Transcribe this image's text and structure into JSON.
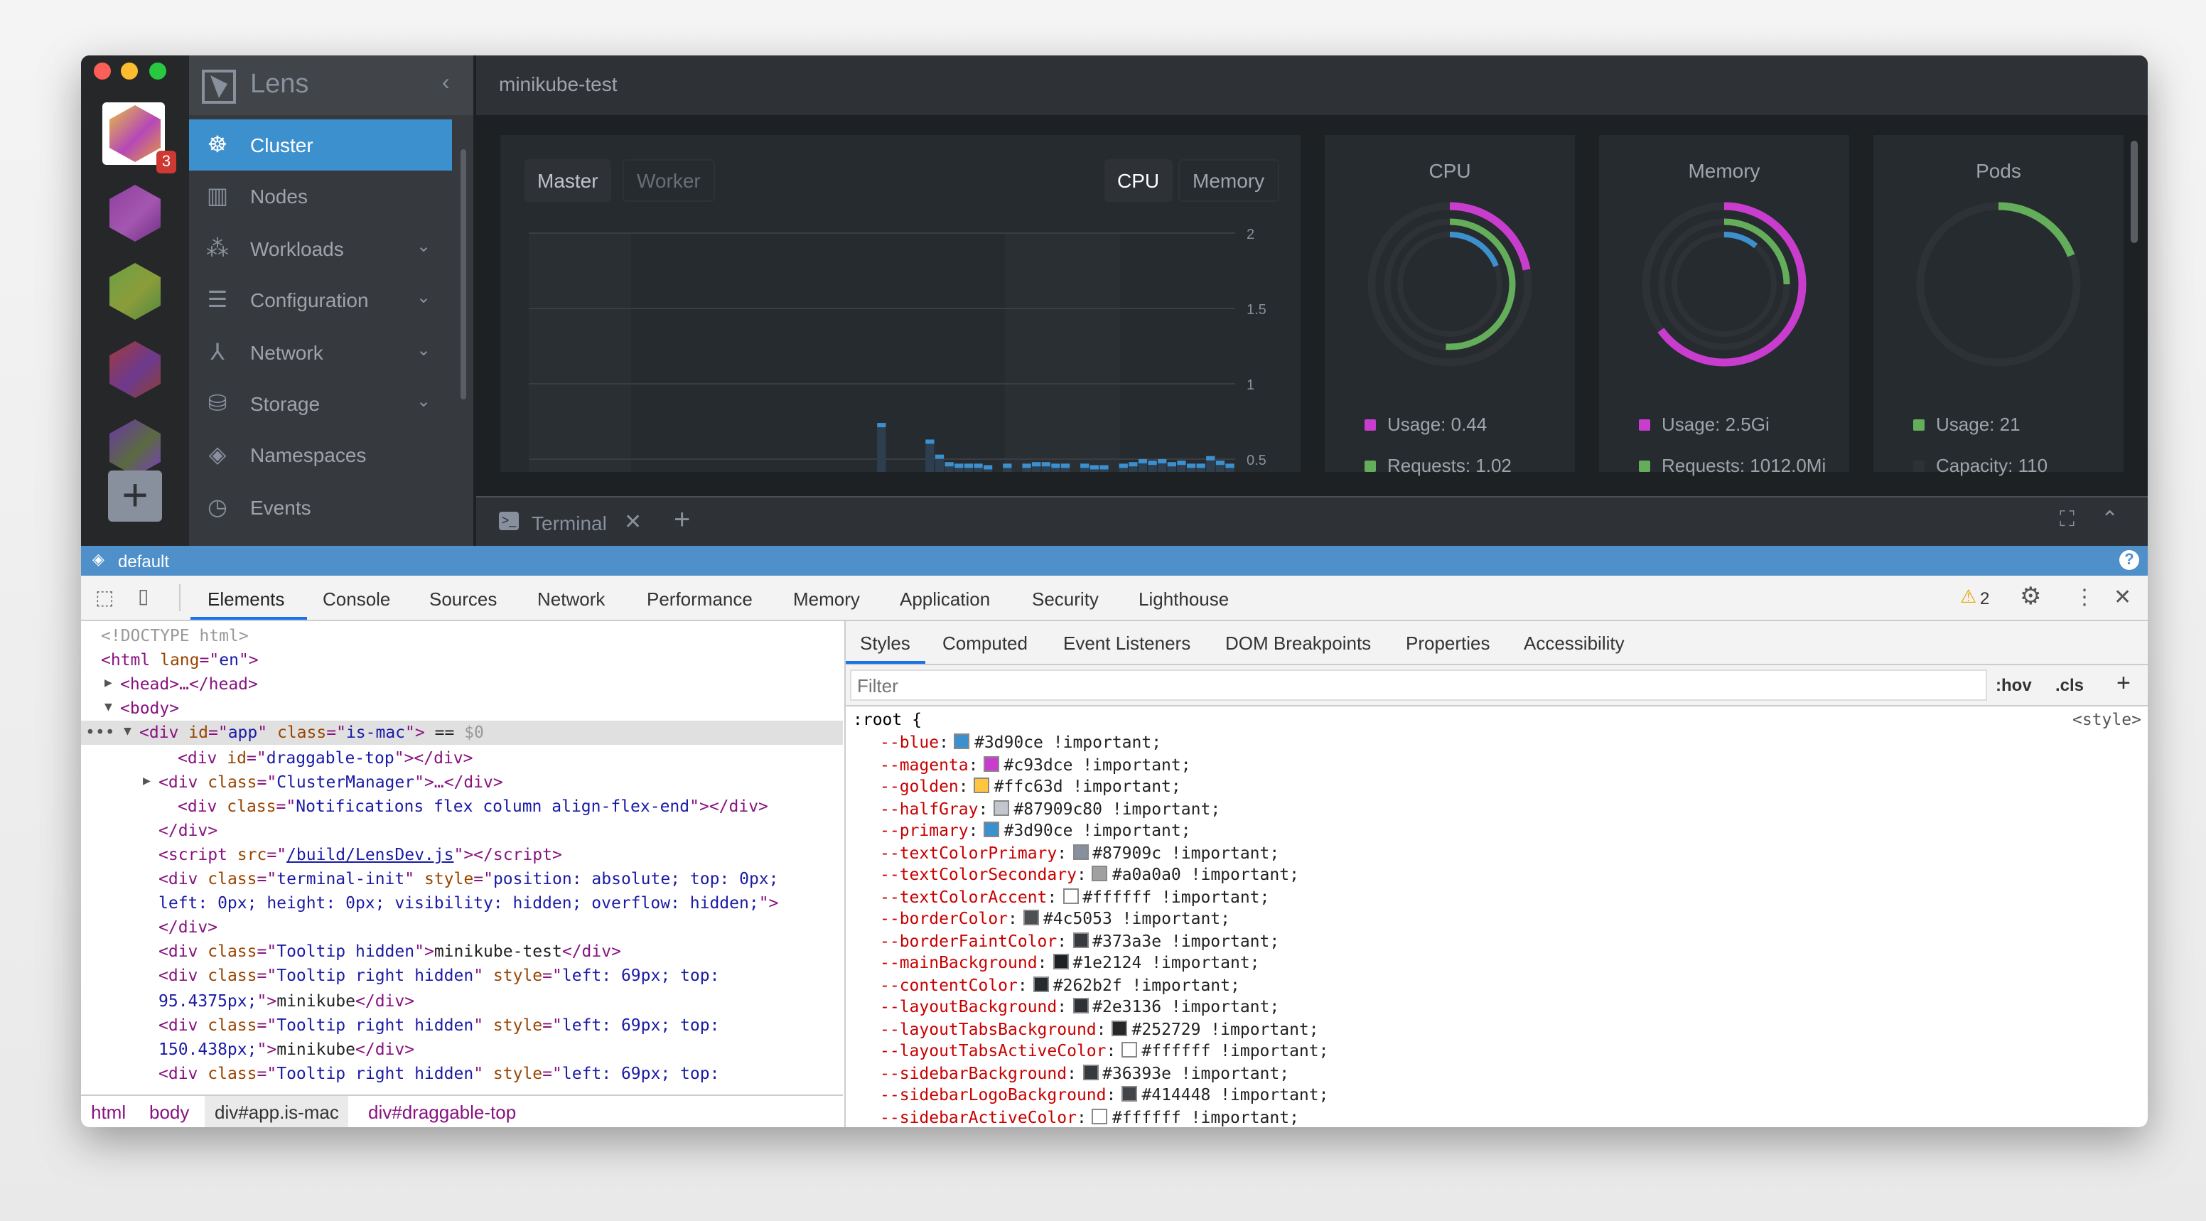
{
  "app": {
    "name": "Lens",
    "cluster_title": "minikube-test",
    "notification_count": "3",
    "add_cluster_label": "+"
  },
  "colors": {
    "blue": "#3d90ce",
    "magenta": "#c93dce",
    "green": "#64ad5a",
    "golden": "#ffc63d",
    "sidebar": "#36393e",
    "main_background": "#1e2124"
  },
  "clusters": [
    {
      "colors": [
        "#e8c040",
        "#b548b8",
        "#e39c3a"
      ],
      "active": true
    },
    {
      "colors": [
        "#8d3f9e",
        "#a457b0",
        "#6e2f80"
      ]
    },
    {
      "colors": [
        "#6aa045",
        "#8c9c3a",
        "#4f8a40"
      ]
    },
    {
      "colors": [
        "#a13a3a",
        "#6c3a8f",
        "#8f4030"
      ]
    },
    {
      "colors": [
        "#6a37a8",
        "#5a6a40",
        "#7a3ec0"
      ]
    }
  ],
  "sidebar": {
    "items": [
      {
        "label": "Cluster",
        "icon": "helm-wheel-icon",
        "active": true
      },
      {
        "label": "Nodes",
        "icon": "server-icon"
      },
      {
        "label": "Workloads",
        "icon": "cubes-icon",
        "expandable": true
      },
      {
        "label": "Configuration",
        "icon": "list-icon",
        "expandable": true
      },
      {
        "label": "Network",
        "icon": "network-icon",
        "expandable": true
      },
      {
        "label": "Storage",
        "icon": "database-icon",
        "expandable": true
      },
      {
        "label": "Namespaces",
        "icon": "layers-icon"
      },
      {
        "label": "Events",
        "icon": "clock-icon"
      }
    ]
  },
  "metrics": {
    "node_tabs": [
      "Master",
      "Worker"
    ],
    "metric_tabs": [
      "CPU",
      "Memory"
    ],
    "active_node_tab": "Master",
    "active_metric_tab": "CPU"
  },
  "chart_data": {
    "type": "bar",
    "ylim": [
      0.42,
      2
    ],
    "yticks": [
      "2",
      "1.5",
      "1",
      "0.5"
    ],
    "ytick_values": [
      2,
      1.5,
      1,
      0.5
    ],
    "grid": true,
    "values": [
      null,
      null,
      null,
      null,
      null,
      null,
      null,
      null,
      null,
      null,
      null,
      null,
      null,
      null,
      null,
      null,
      null,
      null,
      null,
      null,
      null,
      null,
      null,
      null,
      null,
      null,
      null,
      null,
      null,
      null,
      null,
      null,
      null,
      null,
      null,
      null,
      0.74,
      null,
      null,
      null,
      null,
      0.63,
      0.53,
      0.48,
      0.47,
      0.47,
      0.47,
      0.46,
      null,
      0.47,
      null,
      0.47,
      0.48,
      0.48,
      0.47,
      0.47,
      null,
      0.47,
      0.46,
      0.46,
      null,
      0.47,
      0.48,
      0.5,
      0.49,
      0.5,
      0.48,
      0.49,
      0.47,
      0.47,
      0.52,
      0.49,
      0.47
    ]
  },
  "cards": [
    {
      "title": "CPU",
      "rings": [
        {
          "color": "#c93dce",
          "fraction": 0.22
        },
        {
          "color": "#64ad5a",
          "fraction": 0.51
        },
        {
          "color": "#3d90ce",
          "fraction": 0.19
        }
      ],
      "legend": [
        {
          "label": "Usage: 0.44",
          "color": "#c93dce"
        },
        {
          "label": "Requests: 1.02",
          "color": "#64ad5a"
        }
      ]
    },
    {
      "title": "Memory",
      "rings": [
        {
          "color": "#c93dce",
          "fraction": 0.65
        },
        {
          "color": "#64ad5a",
          "fraction": 0.25
        },
        {
          "color": "#3d90ce",
          "fraction": 0.11
        }
      ],
      "legend": [
        {
          "label": "Usage: 2.5Gi",
          "color": "#c93dce"
        },
        {
          "label": "Requests: 1012.0Mi",
          "color": "#64ad5a"
        }
      ]
    },
    {
      "title": "Pods",
      "rings": [
        {
          "color": "#64ad5a",
          "fraction": 0.19
        }
      ],
      "legend": [
        {
          "label": "Usage: 21",
          "color": "#64ad5a"
        },
        {
          "label": "Capacity: 110",
          "color": "#2e3136"
        }
      ]
    }
  ],
  "terminal": {
    "tab_label": "Terminal"
  },
  "statusbar": {
    "namespace": "default"
  },
  "devtools": {
    "tabs": [
      "Elements",
      "Console",
      "Sources",
      "Network",
      "Performance",
      "Memory",
      "Application",
      "Security",
      "Lighthouse"
    ],
    "active_tab": "Elements",
    "warning_count": "2",
    "breadcrumbs": [
      "html",
      "body",
      "div#app.is-mac",
      "div#draggable-top"
    ],
    "styles_tabs": [
      "Styles",
      "Computed",
      "Event Listeners",
      "DOM Breakpoints",
      "Properties",
      "Accessibility"
    ],
    "filter_placeholder": "Filter",
    "hov": ":hov",
    "cls": ".cls",
    "rule_selector": ":root {",
    "rule_source": "<style>",
    "properties": [
      {
        "name": "--blue",
        "value": "#3d90ce !important;",
        "swatch": "#3d90ce"
      },
      {
        "name": "--magenta",
        "value": "#c93dce !important;",
        "swatch": "#c93dce"
      },
      {
        "name": "--golden",
        "value": "#ffc63d !important;",
        "swatch": "#ffc63d"
      },
      {
        "name": "--halfGray",
        "value": "#87909c80 !important;",
        "swatch": "#87909c80"
      },
      {
        "name": "--primary",
        "value": "#3d90ce !important;",
        "swatch": "#3d90ce"
      },
      {
        "name": "--textColorPrimary",
        "value": "#87909c !important;",
        "swatch": "#87909c"
      },
      {
        "name": "--textColorSecondary",
        "value": "#a0a0a0 !important;",
        "swatch": "#a0a0a0"
      },
      {
        "name": "--textColorAccent",
        "value": "#ffffff !important;",
        "swatch": "#ffffff"
      },
      {
        "name": "--borderColor",
        "value": "#4c5053 !important;",
        "swatch": "#4c5053"
      },
      {
        "name": "--borderFaintColor",
        "value": "#373a3e !important;",
        "swatch": "#373a3e"
      },
      {
        "name": "--mainBackground",
        "value": "#1e2124 !important;",
        "swatch": "#1e2124"
      },
      {
        "name": "--contentColor",
        "value": "#262b2f !important;",
        "swatch": "#262b2f"
      },
      {
        "name": "--layoutBackground",
        "value": "#2e3136 !important;",
        "swatch": "#2e3136"
      },
      {
        "name": "--layoutTabsBackground",
        "value": "#252729 !important;",
        "swatch": "#252729"
      },
      {
        "name": "--layoutTabsActiveColor",
        "value": "#ffffff !important;",
        "swatch": "#ffffff"
      },
      {
        "name": "--sidebarBackground",
        "value": "#36393e !important;",
        "swatch": "#36393e"
      },
      {
        "name": "--sidebarLogoBackground",
        "value": "#414448 !important;",
        "swatch": "#414448"
      },
      {
        "name": "--sidebarActiveColor",
        "value": "#ffffff !important;",
        "swatch": "#ffffff"
      }
    ],
    "dom_lines": [
      {
        "indent": 0,
        "html": [
          [
            "cm",
            "<!DOCTYPE html>"
          ]
        ]
      },
      {
        "indent": 0,
        "html": [
          [
            "tg",
            "<html "
          ],
          [
            "an",
            "lang"
          ],
          [
            "tg",
            "=\""
          ],
          [
            "av",
            "en"
          ],
          [
            "tg",
            "\">"
          ]
        ]
      },
      {
        "indent": 1,
        "arrow": "▶",
        "html": [
          [
            "tg",
            "<head>…</head>"
          ]
        ]
      },
      {
        "indent": 1,
        "arrow": "▼",
        "html": [
          [
            "tg",
            "<body>"
          ]
        ]
      },
      {
        "indent": 2,
        "arrow": "▼",
        "selected": true,
        "html": [
          [
            "tg",
            "<div "
          ],
          [
            "an",
            "id"
          ],
          [
            "tg",
            "=\""
          ],
          [
            "av",
            "app"
          ],
          [
            "tg",
            "\" "
          ],
          [
            "an",
            "class"
          ],
          [
            "tg",
            "=\""
          ],
          [
            "av",
            "is-mac"
          ],
          [
            "tg",
            "\">"
          ],
          [
            "",
            " == "
          ],
          [
            "cm",
            "$0"
          ]
        ]
      },
      {
        "indent": 4,
        "html": [
          [
            "tg",
            "<div "
          ],
          [
            "an",
            "id"
          ],
          [
            "tg",
            "=\""
          ],
          [
            "av",
            "draggable-top"
          ],
          [
            "tg",
            "\"></div>"
          ]
        ]
      },
      {
        "indent": 3,
        "arrow": "▶",
        "html": [
          [
            "tg",
            "<div "
          ],
          [
            "an",
            "class"
          ],
          [
            "tg",
            "=\""
          ],
          [
            "av",
            "ClusterManager"
          ],
          [
            "tg",
            "\">…</div>"
          ]
        ]
      },
      {
        "indent": 4,
        "html": [
          [
            "tg",
            "<div "
          ],
          [
            "an",
            "class"
          ],
          [
            "tg",
            "=\""
          ],
          [
            "av",
            "Notifications flex column align-flex-end"
          ],
          [
            "tg",
            "\"></div>"
          ]
        ]
      },
      {
        "indent": 3,
        "html": [
          [
            "tg",
            "</div>"
          ]
        ]
      },
      {
        "indent": 3,
        "html": [
          [
            "tg",
            "<script "
          ],
          [
            "an",
            "src"
          ],
          [
            "tg",
            "=\""
          ],
          [
            "lnk",
            "/build/LensDev.js"
          ],
          [
            "tg",
            "\"></script>"
          ]
        ]
      },
      {
        "indent": 3,
        "html": [
          [
            "tg",
            "<div "
          ],
          [
            "an",
            "class"
          ],
          [
            "tg",
            "=\""
          ],
          [
            "av",
            "terminal-init"
          ],
          [
            "tg",
            "\" "
          ],
          [
            "an",
            "style"
          ],
          [
            "tg",
            "=\""
          ],
          [
            "av",
            "position: absolute; top: 0px;"
          ]
        ]
      },
      {
        "indent": 3,
        "html": [
          [
            "av",
            "left: 0px; height: 0px; visibility: hidden; overflow: hidden;"
          ],
          [
            "tg",
            "\">"
          ]
        ]
      },
      {
        "indent": 3,
        "html": [
          [
            "tg",
            "</div>"
          ]
        ]
      },
      {
        "indent": 3,
        "html": [
          [
            "tg",
            "<div "
          ],
          [
            "an",
            "class"
          ],
          [
            "tg",
            "=\""
          ],
          [
            "av",
            "Tooltip hidden"
          ],
          [
            "tg",
            "\">"
          ],
          [
            "",
            "minikube-test"
          ],
          [
            "tg",
            "</div>"
          ]
        ]
      },
      {
        "indent": 3,
        "html": [
          [
            "tg",
            "<div "
          ],
          [
            "an",
            "class"
          ],
          [
            "tg",
            "=\""
          ],
          [
            "av",
            "Tooltip right hidden"
          ],
          [
            "tg",
            "\" "
          ],
          [
            "an",
            "style"
          ],
          [
            "tg",
            "=\""
          ],
          [
            "av",
            "left: 69px; top:"
          ]
        ]
      },
      {
        "indent": 3,
        "html": [
          [
            "av",
            "95.4375px;"
          ],
          [
            "tg",
            "\">"
          ],
          [
            "",
            "minikube"
          ],
          [
            "tg",
            "</div>"
          ]
        ]
      },
      {
        "indent": 3,
        "html": [
          [
            "tg",
            "<div "
          ],
          [
            "an",
            "class"
          ],
          [
            "tg",
            "=\""
          ],
          [
            "av",
            "Tooltip right hidden"
          ],
          [
            "tg",
            "\" "
          ],
          [
            "an",
            "style"
          ],
          [
            "tg",
            "=\""
          ],
          [
            "av",
            "left: 69px; top:"
          ]
        ]
      },
      {
        "indent": 3,
        "html": [
          [
            "av",
            "150.438px;"
          ],
          [
            "tg",
            "\">"
          ],
          [
            "",
            "minikube"
          ],
          [
            "tg",
            "</div>"
          ]
        ]
      },
      {
        "indent": 3,
        "html": [
          [
            "tg",
            "<div "
          ],
          [
            "an",
            "class"
          ],
          [
            "tg",
            "=\""
          ],
          [
            "av",
            "Tooltip right hidden"
          ],
          [
            "tg",
            "\" "
          ],
          [
            "an",
            "style"
          ],
          [
            "tg",
            "=\""
          ],
          [
            "av",
            "left: 69px; top:"
          ]
        ]
      }
    ]
  }
}
